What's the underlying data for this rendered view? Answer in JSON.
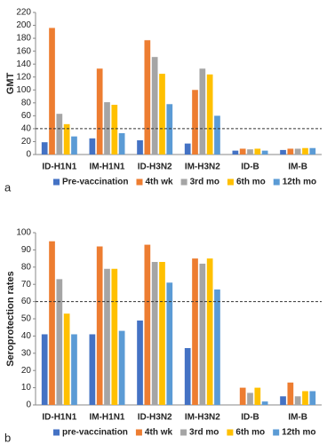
{
  "chart_data": [
    {
      "type": "bar",
      "ylabel": "GMT",
      "panel_label": "a",
      "categories": [
        "ID-H1N1",
        "IM-H1N1",
        "ID-H3N2",
        "IM-H3N2",
        "ID-B",
        "IM-B"
      ],
      "series": [
        {
          "name": "Pre-vaccination",
          "color": "#4472c4",
          "values": [
            19,
            25,
            22,
            17,
            6,
            7
          ]
        },
        {
          "name": "4th wk",
          "color": "#ed7d31",
          "values": [
            196,
            133,
            177,
            100,
            9,
            9
          ]
        },
        {
          "name": "3rd mo",
          "color": "#a5a5a5",
          "values": [
            63,
            81,
            151,
            133,
            8,
            9
          ]
        },
        {
          "name": "6th mo",
          "color": "#ffc000",
          "values": [
            47,
            77,
            125,
            124,
            9,
            10
          ]
        },
        {
          "name": "12th mo",
          "color": "#5b9bd5",
          "values": [
            28,
            33,
            78,
            60,
            6,
            10
          ]
        }
      ],
      "ylim": [
        0,
        220
      ],
      "yticks": [
        0,
        20,
        40,
        60,
        80,
        100,
        120,
        140,
        160,
        180,
        200,
        220
      ],
      "threshold": 40,
      "grid": false
    },
    {
      "type": "bar",
      "ylabel": "Seroprotection rates",
      "panel_label": "b",
      "categories": [
        "ID-H1N1",
        "IM-H1N1",
        "ID-H3N2",
        "IM-H3N2",
        "ID-B",
        "IM-B"
      ],
      "series": [
        {
          "name": "pre-vaccination",
          "color": "#4472c4",
          "values": [
            41,
            41,
            49,
            33,
            0,
            5
          ]
        },
        {
          "name": "4th wk",
          "color": "#ed7d31",
          "values": [
            95,
            92,
            93,
            85,
            10,
            13
          ]
        },
        {
          "name": "3rd mo",
          "color": "#a5a5a5",
          "values": [
            73,
            79,
            83,
            82,
            7,
            5
          ]
        },
        {
          "name": "6th mo",
          "color": "#ffc000",
          "values": [
            53,
            79,
            83,
            85,
            10,
            8
          ]
        },
        {
          "name": "12th mo",
          "color": "#5b9bd5",
          "values": [
            41,
            43,
            71,
            67,
            2,
            8
          ]
        }
      ],
      "ylim": [
        0,
        100
      ],
      "yticks": [
        0,
        10,
        20,
        30,
        40,
        50,
        60,
        70,
        80,
        90,
        100
      ],
      "threshold": 60,
      "grid": false
    }
  ]
}
